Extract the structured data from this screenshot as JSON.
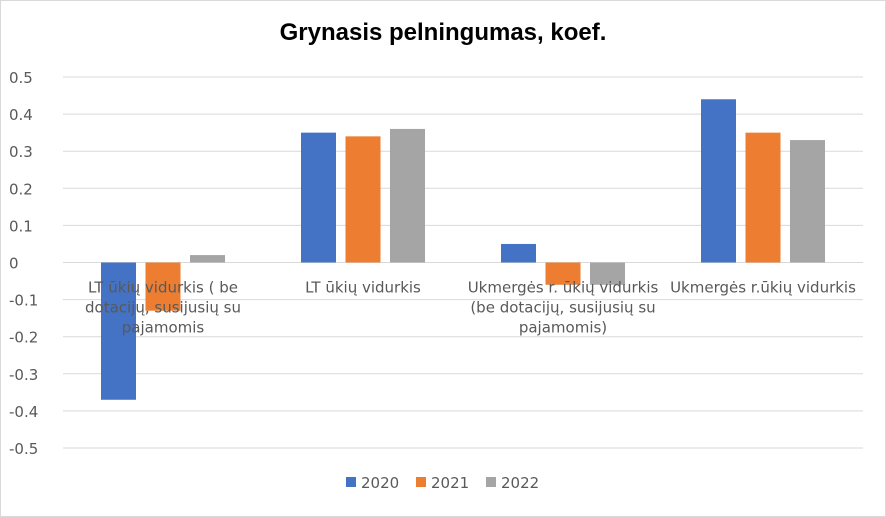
{
  "chart_data": {
    "type": "bar",
    "title": "Grynasis pelningumas, koef.",
    "xlabel": "",
    "ylabel": "",
    "ylim": [
      -0.5,
      0.5
    ],
    "yticks": [
      "0.5",
      "0.4",
      "0.3",
      "0.2",
      "0.1",
      "0",
      "-0.1",
      "-0.2",
      "-0.3",
      "-0.4",
      "-0.5"
    ],
    "ytick_values": [
      0.5,
      0.4,
      0.3,
      0.2,
      0.1,
      0,
      -0.1,
      -0.2,
      -0.3,
      -0.4,
      -0.5
    ],
    "categories": [
      "LT ūkių vidurkis ( be dotacijų, susijusių su pajamomis",
      "LT ūkių vidurkis",
      "Ukmergės r. ūkių vidurkis (be dotacijų, susijusių su pajamomis)",
      "Ukmergės r.ūkių vidurkis"
    ],
    "category_lines": [
      [
        "LT ūkių vidurkis ( be",
        "dotacijų, susijusių su",
        "pajamomis"
      ],
      [
        "LT ūkių vidurkis"
      ],
      [
        "Ukmergės r. ūkių vidurkis",
        "(be dotacijų, susijusių su",
        "pajamomis)"
      ],
      [
        "Ukmergės r.ūkių vidurkis"
      ]
    ],
    "series": [
      {
        "name": "2020",
        "color": "#4472C4",
        "values": [
          -0.37,
          0.35,
          0.05,
          0.44
        ]
      },
      {
        "name": "2021",
        "color": "#ED7D31",
        "values": [
          -0.13,
          0.34,
          -0.06,
          0.35
        ]
      },
      {
        "name": "2022",
        "color": "#A5A5A5",
        "values": [
          0.02,
          0.36,
          -0.06,
          0.33
        ]
      }
    ],
    "grid": true,
    "legend": "bottom"
  }
}
